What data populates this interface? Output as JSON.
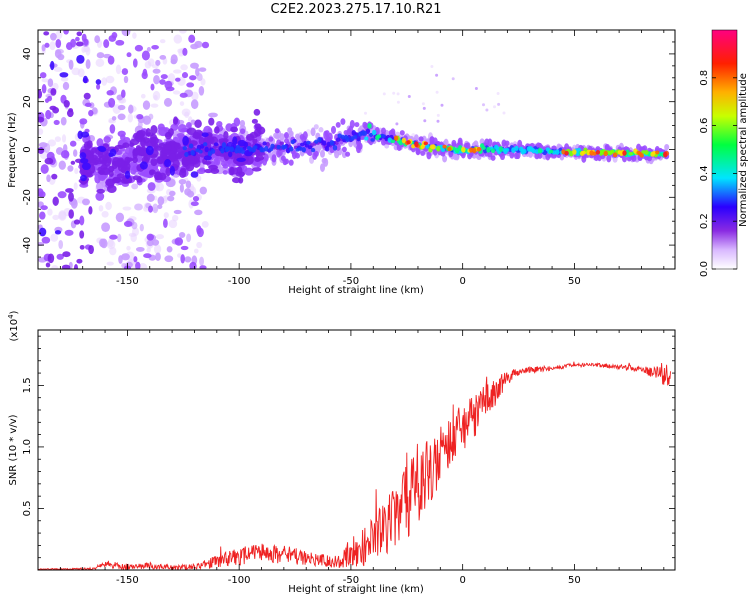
{
  "title": "C2E2.2023.275.17.10.R21",
  "chart_data": [
    {
      "type": "heatmap",
      "title": "C2E2.2023.275.17.10.R21",
      "xlabel": "Height of straight line (km)",
      "ylabel": "Frequency (Hz)",
      "xlim": [
        -190,
        95
      ],
      "ylim": [
        -50,
        50
      ],
      "xticks": [
        -150,
        -100,
        -50,
        0,
        50
      ],
      "yticks": [
        -40,
        -20,
        0,
        20,
        40
      ],
      "ridge": {
        "x": [
          -190,
          -160,
          -140,
          -120,
          -100,
          -80,
          -60,
          -50,
          -42,
          -35,
          -25,
          -15,
          0,
          20,
          50,
          92
        ],
        "y": [
          -5,
          -5,
          -3,
          0,
          0,
          1,
          2,
          5,
          7,
          5,
          3,
          1,
          0,
          0,
          -1,
          -2
        ]
      },
      "colorbar": {
        "label": "Normalized spectral amplitude",
        "range": [
          0.0,
          1.0
        ],
        "ticks": [
          0.0,
          0.2,
          0.4,
          0.6,
          0.8
        ],
        "colors": [
          "#ffffff",
          "#b97bff",
          "#6a00ff",
          "#0000ff",
          "#00e5ff",
          "#00ff00",
          "#ffff00",
          "#ff8000",
          "#ff0000",
          "#ff0080"
        ]
      }
    },
    {
      "type": "line",
      "xlabel": "Height of straight line (km)",
      "ylabel": "SNR (10 * v/v)",
      "multiplier_label": "(x10",
      "multiplier_exponent": "4",
      "multiplier_close": ")",
      "xlim": [
        -190,
        95
      ],
      "ylim": [
        0,
        1.95
      ],
      "xticks": [
        -150,
        -100,
        -50,
        0,
        50
      ],
      "yticks": [
        0.5,
        1.0,
        1.5
      ],
      "series": [
        {
          "name": "SNR",
          "color": "#ee2222",
          "envelope_x": [
            -190,
            -165,
            -160,
            -150,
            -140,
            -130,
            -120,
            -110,
            -100,
            -90,
            -80,
            -70,
            -60,
            -55,
            -50,
            -45,
            -40,
            -35,
            -30,
            -25,
            -20,
            -15,
            -10,
            -5,
            0,
            5,
            10,
            15,
            20,
            25,
            30,
            40,
            50,
            60,
            70,
            80,
            85,
            90,
            92
          ],
          "envelope_y": [
            0.01,
            0.02,
            0.08,
            0.05,
            0.06,
            0.04,
            0.05,
            0.12,
            0.18,
            0.22,
            0.2,
            0.16,
            0.12,
            0.14,
            0.22,
            0.32,
            0.45,
            0.55,
            0.7,
            0.85,
            0.98,
            1.08,
            1.2,
            1.28,
            1.35,
            1.42,
            1.5,
            1.57,
            1.62,
            1.64,
            1.65,
            1.66,
            1.68,
            1.68,
            1.67,
            1.66,
            1.64,
            1.68,
            1.62
          ],
          "noise_y": [
            0.01,
            0.02,
            0.06,
            0.05,
            0.05,
            0.04,
            0.05,
            0.1,
            0.14,
            0.16,
            0.15,
            0.12,
            0.1,
            0.12,
            0.22,
            0.3,
            0.36,
            0.45,
            0.55,
            0.6,
            0.6,
            0.55,
            0.5,
            0.45,
            0.42,
            0.35,
            0.3,
            0.22,
            0.12,
            0.06,
            0.05,
            0.04,
            0.03,
            0.03,
            0.04,
            0.05,
            0.08,
            0.18,
            0.15
          ]
        }
      ]
    }
  ]
}
